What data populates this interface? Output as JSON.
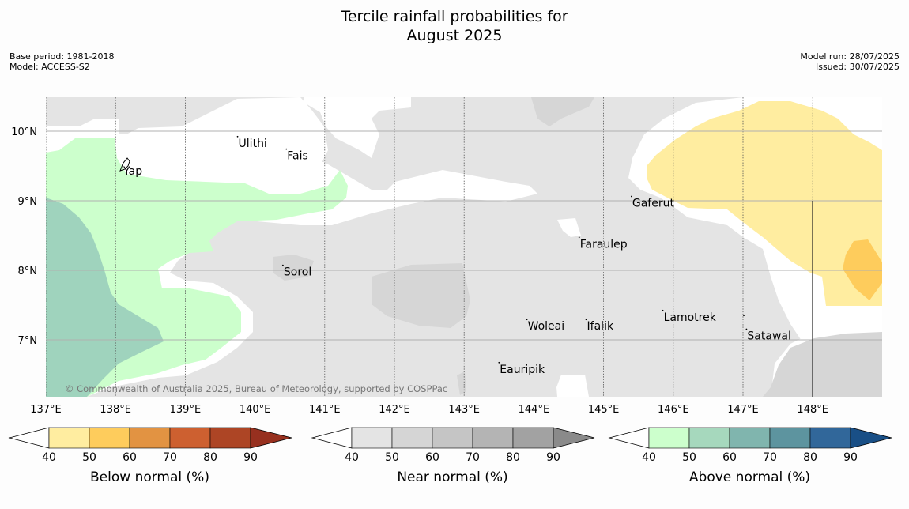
{
  "title_line1": "Tercile rainfall probabilities for",
  "title_line2": "August 2025",
  "meta_left": [
    "Base period: 1981-2018",
    "Model: ACCESS-S2"
  ],
  "meta_right": [
    "Model run: 28/07/2025",
    "Issued: 30/07/2025"
  ],
  "copyright": "© Commonwealth of Australia 2025, Bureau of Meteorology, supported by COSPPac",
  "lon_labels": [
    "137°E",
    "138°E",
    "139°E",
    "140°E",
    "141°E",
    "142°E",
    "143°E",
    "144°E",
    "145°E",
    "146°E",
    "147°E",
    "148°E"
  ],
  "lat_labels": [
    "10°N",
    "9°N",
    "8°N",
    "7°N"
  ],
  "places": [
    {
      "name": "Ulithi",
      "lon": 139.75,
      "lat": 9.9
    },
    {
      "name": "Fais",
      "lon": 140.45,
      "lat": 9.72
    },
    {
      "name": "Yap",
      "lon": 138.1,
      "lat": 9.5
    },
    {
      "name": "Gaferut",
      "lon": 145.4,
      "lat": 9.04
    },
    {
      "name": "Faraulep",
      "lon": 144.65,
      "lat": 8.45
    },
    {
      "name": "Sorol",
      "lon": 140.4,
      "lat": 8.05
    },
    {
      "name": "Woleai",
      "lon": 143.9,
      "lat": 7.27
    },
    {
      "name": "Ifalik",
      "lon": 144.75,
      "lat": 7.27
    },
    {
      "name": "Lamotrek",
      "lon": 145.85,
      "lat": 7.4
    },
    {
      "name": "Satawal",
      "lon": 147.05,
      "lat": 7.13
    },
    {
      "name": "Eauripik",
      "lon": 143.5,
      "lat": 6.65
    }
  ],
  "colorbars": [
    {
      "title": "Below normal (%)",
      "ticks": [
        "40",
        "50",
        "60",
        "70",
        "80",
        "90"
      ],
      "colors": [
        "#ffeda0",
        "#fecc5c",
        "#e29342",
        "#cd6030",
        "#ad4525",
        "#97301f"
      ]
    },
    {
      "title": "Near normal (%)",
      "ticks": [
        "40",
        "50",
        "60",
        "70",
        "80",
        "90"
      ],
      "colors": [
        "#e4e4e4",
        "#d5d5d5",
        "#c5c5c5",
        "#b4b4b4",
        "#a2a2a2",
        "#8a8a8a"
      ]
    },
    {
      "title": "Above normal (%)",
      "ticks": [
        "40",
        "50",
        "60",
        "70",
        "80",
        "90"
      ],
      "colors": [
        "#ccffcc",
        "#a6d8bd",
        "#80b5ae",
        "#5d949f",
        "#31679a",
        "#194f86"
      ]
    }
  ],
  "colors": {
    "near_base": "#e4e4e4",
    "near_mid": "#d6d6d6",
    "above_light": "#ccffcc",
    "above_mid": "#9fd3bd",
    "below_light": "#ffeda0",
    "below_mid": "#fecc5c",
    "gap": "#ffffff",
    "grid": "#b0b0b0"
  }
}
